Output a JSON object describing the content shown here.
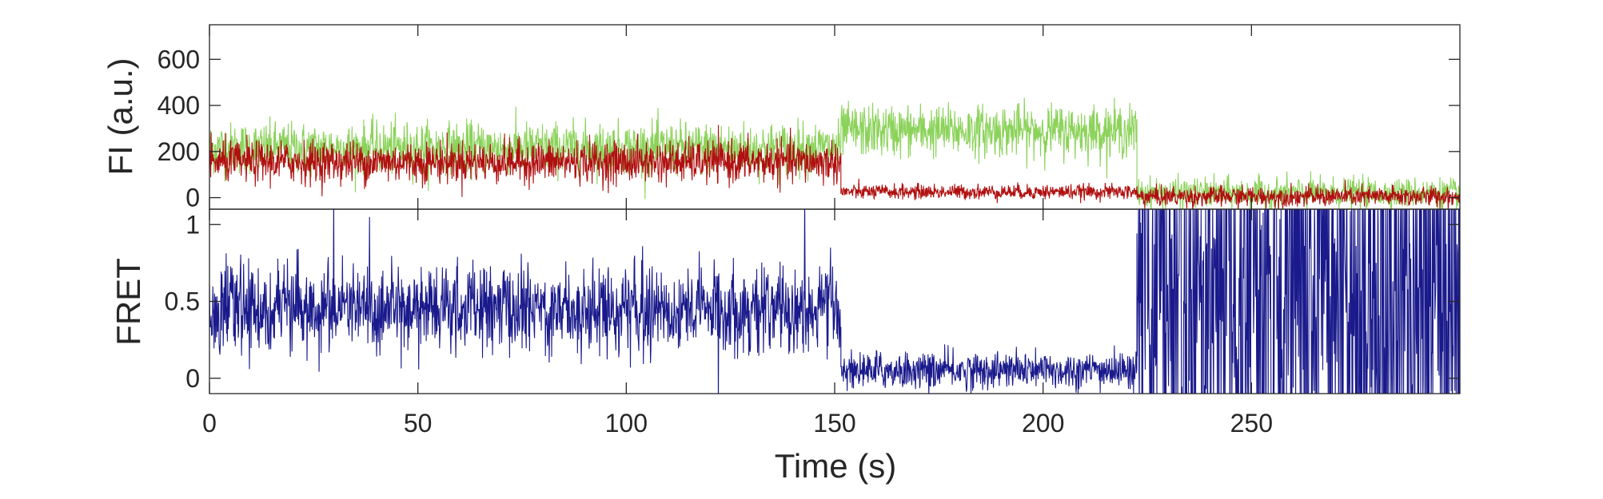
{
  "chart_data": [
    {
      "id": "fluorescence",
      "type": "line",
      "title": "",
      "xlabel": "",
      "ylabel": "FI (a.u.)",
      "xlim": [
        0,
        300
      ],
      "ylim": [
        -50,
        750
      ],
      "xticks": [
        0,
        50,
        100,
        150,
        200,
        250
      ],
      "yticks": [
        0,
        200,
        400,
        600
      ],
      "grid": false,
      "legend": "none",
      "series": [
        {
          "color": "#8bd25a",
          "segments": [
            {
              "t0": 0,
              "t1": 151.5,
              "mean": 215,
              "noise": 55
            },
            {
              "t0": 151.5,
              "t1": 222.5,
              "mean": 290,
              "noise": 55
            },
            {
              "t0": 222.5,
              "t1": 300,
              "mean": 20,
              "noise": 32
            }
          ]
        },
        {
          "color": "#b01010",
          "segments": [
            {
              "t0": 0,
              "t1": 151.5,
              "mean": 155,
              "noise": 45
            },
            {
              "t0": 151.5,
              "t1": 222.5,
              "mean": 25,
              "noise": 16
            },
            {
              "t0": 222.5,
              "t1": 300,
              "mean": 5,
              "noise": 22
            }
          ]
        }
      ]
    },
    {
      "id": "fret",
      "type": "line",
      "title": "",
      "xlabel": "Time (s)",
      "ylabel": "FRET",
      "xlim": [
        0,
        300
      ],
      "ylim": [
        -0.1,
        1.1
      ],
      "xticks": [
        0,
        50,
        100,
        150,
        200,
        250
      ],
      "yticks": [
        0,
        0.5,
        1
      ],
      "grid": false,
      "legend": "none",
      "series": [
        {
          "color": "#1a1a8c",
          "segments": [
            {
              "t0": 0,
              "t1": 151.5,
              "mean": 0.45,
              "noise": 0.14
            },
            {
              "t0": 151.5,
              "t1": 222.5,
              "mean": 0.05,
              "noise": 0.06
            },
            {
              "t0": 222.5,
              "t1": 300,
              "mean": 0.5,
              "noise": 0.6
            }
          ]
        }
      ]
    }
  ]
}
